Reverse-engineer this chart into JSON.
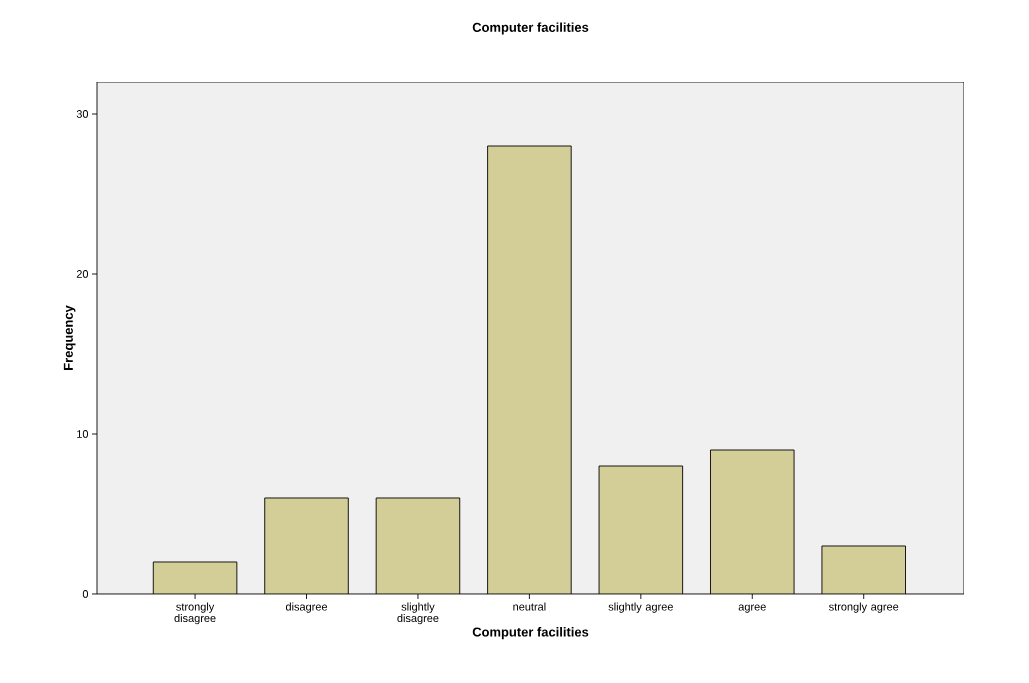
{
  "chart_data": {
    "type": "bar",
    "title": "Computer facilities",
    "xlabel": "Computer facilities",
    "ylabel": "Frequency",
    "categories": [
      "strongly disagree",
      "disagree",
      "slightly disagree",
      "neutral",
      "slightly agree",
      "agree",
      "strongly agree"
    ],
    "values": [
      2,
      6,
      6,
      28,
      8,
      9,
      3
    ],
    "color": "#d3ce97",
    "ylim": [
      0,
      32
    ],
    "yticks": [
      0,
      10,
      20,
      30
    ],
    "grid": false
  }
}
